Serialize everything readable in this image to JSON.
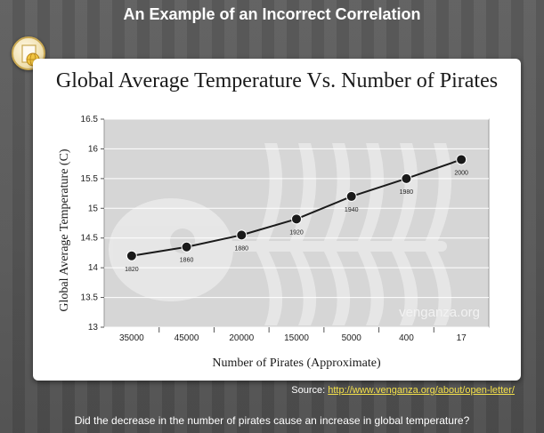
{
  "slide": {
    "title": "An Example of an Incorrect Correlation",
    "source_label": "Source:",
    "source_link": "http://www.venganza.org/about/open-letter/",
    "question": "Did the decrease in the number of pirates cause an increase in global temperature?",
    "badge_icon": "globe-document-icon"
  },
  "chart_data": {
    "type": "line",
    "title": "Global Average Temperature Vs. Number of Pirates",
    "xlabel": "Number of Pirates (Approximate)",
    "ylabel": "Global Average Temperature (C)",
    "categories": [
      "35000",
      "45000",
      "20000",
      "15000",
      "5000",
      "400",
      "17"
    ],
    "values": [
      14.2,
      14.35,
      14.55,
      14.82,
      15.2,
      15.5,
      15.82
    ],
    "point_labels": [
      "1820",
      "1860",
      "1880",
      "1920",
      "1940",
      "1980",
      "2000"
    ],
    "yticks": [
      "13",
      "13.5",
      "14",
      "14.5",
      "15",
      "15.5",
      "16",
      "16.5"
    ],
    "ylim": [
      13,
      16.5
    ],
    "watermark": "venganza.org",
    "grid": true,
    "background_color": "#d6d6d6",
    "line_color": "#1a1a1a"
  }
}
